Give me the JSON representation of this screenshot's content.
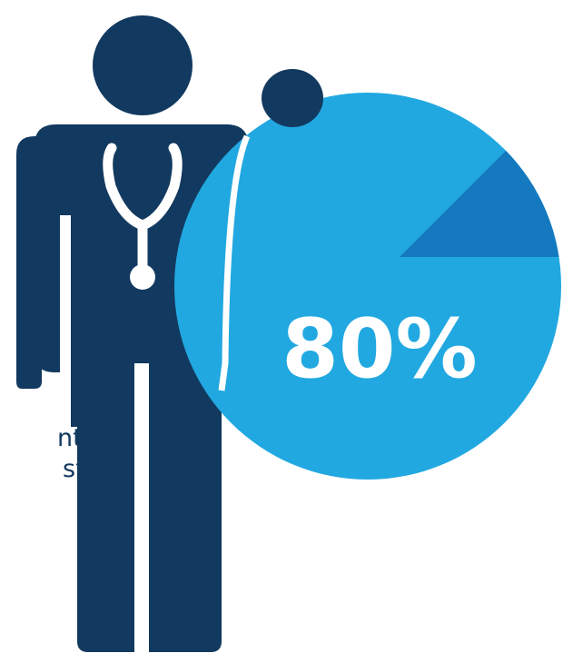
{
  "caption": {
    "line1": "nts",
    "line2": "st",
    "line2_sup": "**"
  },
  "chart": {
    "value_label": "80%",
    "percent": 80,
    "highlight_percent": 12.5
  },
  "colors": {
    "figure": "#12395f",
    "circle": "#22a8e1",
    "slice": "#1579c0",
    "stethoscope": "#ffffff",
    "text": "#12395f"
  },
  "icons": [
    "doctor-figure-icon",
    "stethoscope-icon"
  ]
}
